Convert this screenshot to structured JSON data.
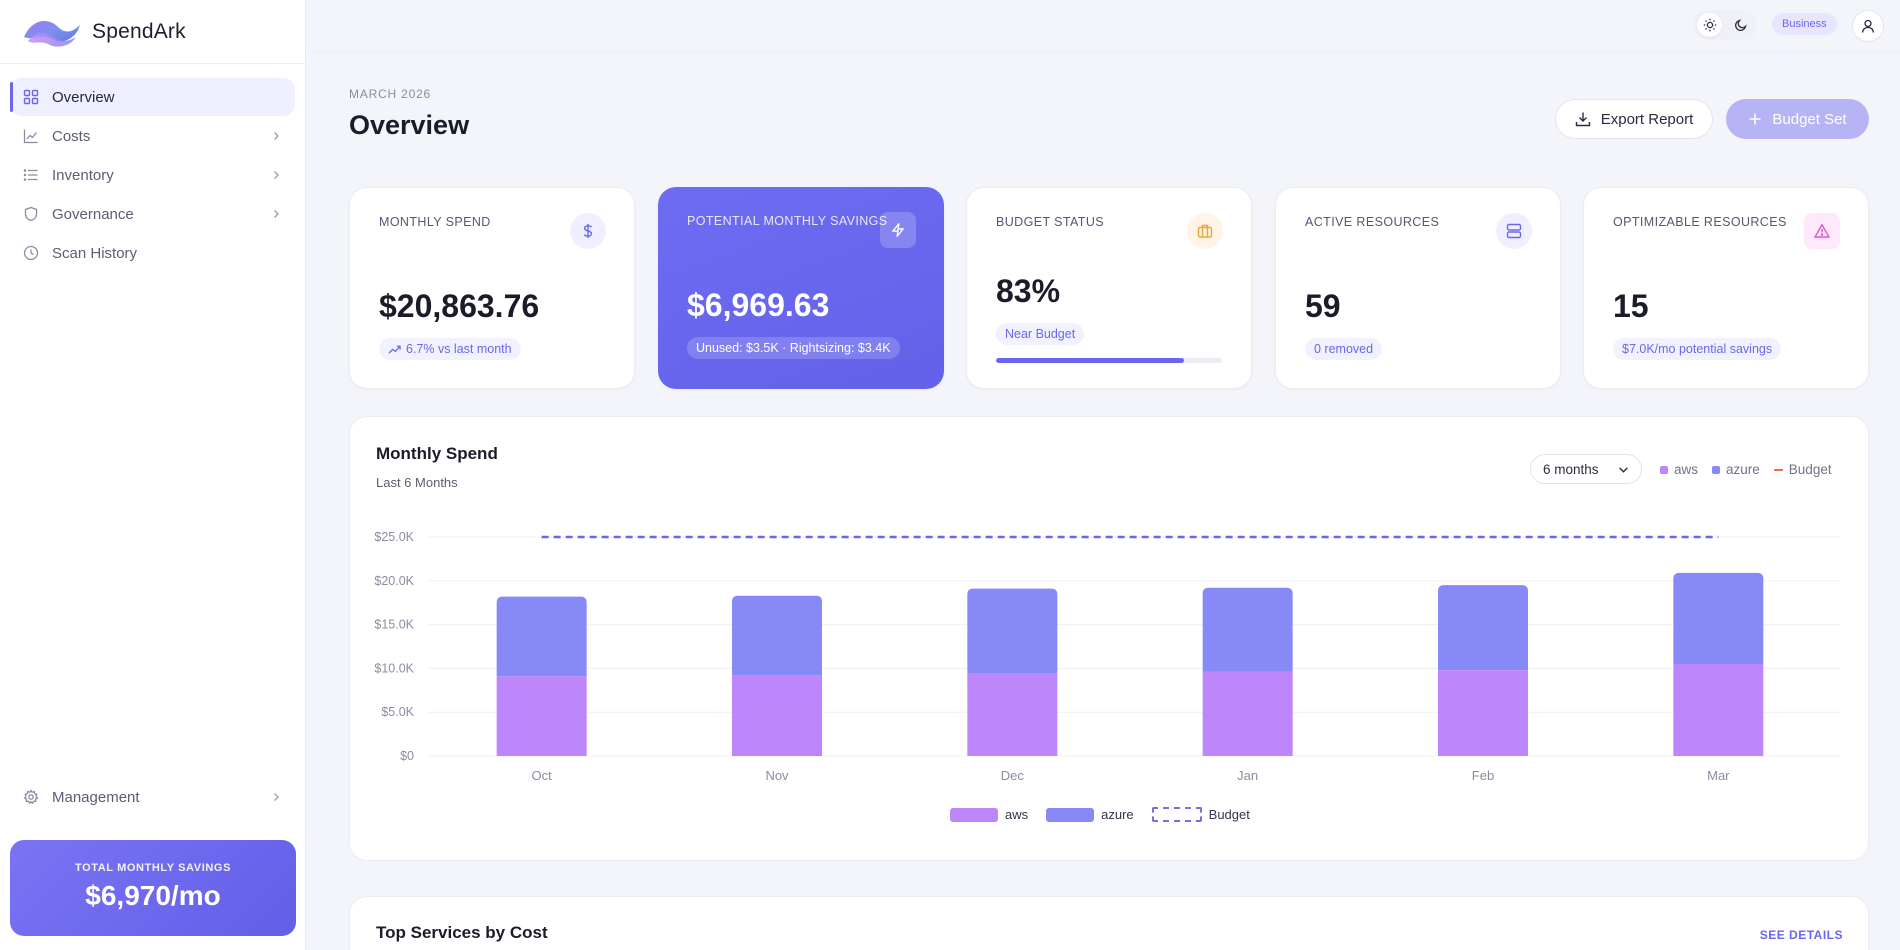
{
  "brand": {
    "name": "SpendArk",
    "logo_icon": "wave-logo"
  },
  "sidebar": {
    "items": [
      {
        "label": "Overview",
        "icon": "grid-icon",
        "active": true,
        "has_chevron": false
      },
      {
        "label": "Costs",
        "icon": "line-chart-icon",
        "active": false,
        "has_chevron": true
      },
      {
        "label": "Inventory",
        "icon": "list-icon",
        "active": false,
        "has_chevron": true
      },
      {
        "label": "Governance",
        "icon": "shield-icon",
        "active": false,
        "has_chevron": true
      },
      {
        "label": "Scan History",
        "icon": "clock-icon",
        "active": false,
        "has_chevron": false
      }
    ],
    "bottom_item": {
      "label": "Management",
      "icon": "gear-icon"
    },
    "savings": {
      "label": "TOTAL MONTHLY SAVINGS",
      "value": "$6,970/mo"
    }
  },
  "topbar": {
    "theme_light_icon": "sun-icon",
    "theme_dark_icon": "moon-icon",
    "plan": "Business",
    "user_icon": "user-icon"
  },
  "header": {
    "eyebrow": "MARCH 2026",
    "title": "Overview",
    "export_label": "Export Report",
    "budget_label": "Budget Set"
  },
  "cards": [
    {
      "label": "MONTHLY SPEND",
      "value": "$20,863.76",
      "chip": "6.7% vs last month",
      "icon": "dollar-icon",
      "accent": "#6a67ee"
    },
    {
      "label": "POTENTIAL MONTHLY SAVINGS",
      "value": "$6,969.63",
      "chip": "Unused: $3.5K · Rightsizing: $3.4K",
      "icon": "lightning-icon",
      "accent": "#ffffff"
    },
    {
      "label": "BUDGET STATUS",
      "value": "83%",
      "chip": "Near Budget",
      "icon": "briefcase-icon",
      "accent": "#f0a33a",
      "progress": 0.83
    },
    {
      "label": "ACTIVE RESOURCES",
      "value": "59",
      "chip": "0 removed",
      "icon": "server-icon",
      "accent": "#6a67ee"
    },
    {
      "label": "OPTIMIZABLE RESOURCES",
      "value": "15",
      "chip": "$7.0K/mo potential savings",
      "icon": "warning-icon",
      "accent": "#e94fd8"
    }
  ],
  "chart_panel": {
    "title": "Monthly Spend",
    "subtitle": "Last 6 Months",
    "range": "6 months",
    "legend": {
      "aws": "aws",
      "azure": "azure",
      "budget": "Budget"
    }
  },
  "chart_data": {
    "type": "bar",
    "stacked": true,
    "categories": [
      "Oct",
      "Nov",
      "Dec",
      "Jan",
      "Feb",
      "Mar"
    ],
    "series": [
      {
        "name": "aws",
        "values": [
          9100,
          9200,
          9400,
          9600,
          9800,
          10500
        ],
        "color": "#bd86fb"
      },
      {
        "name": "azure",
        "values": [
          9100,
          9100,
          9700,
          9600,
          9700,
          10400
        ],
        "color": "#8789f6"
      }
    ],
    "budget": 25000,
    "budget_color": "#6a67ee",
    "yticks": [
      "$0",
      "$5.0K",
      "$10.0K",
      "$15.0K",
      "$20.0K",
      "$25.0K"
    ],
    "ylim": [
      0,
      25000
    ],
    "grid": true,
    "legend": "bottom-center"
  },
  "bottom_panel": {
    "title": "Top Services by Cost",
    "link": "SEE DETAILS"
  }
}
